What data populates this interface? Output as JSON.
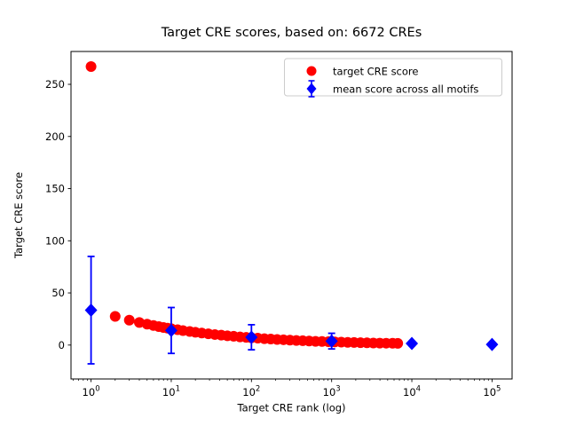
{
  "chart_data": {
    "type": "scatter",
    "title": "Target CRE scores, based on: 6672 CREs",
    "xlabel": "Target CRE rank (log)",
    "ylabel": "Target CRE score",
    "x_scale": "log",
    "xlim_log10": [
      -0.25,
      5.25
    ],
    "ylim": [
      -32.5,
      281.5
    ],
    "x_tick_base": 10,
    "x_tick_exponents": [
      0,
      1,
      2,
      3,
      4,
      5
    ],
    "y_ticks": [
      0,
      50,
      100,
      150,
      200,
      250
    ],
    "grid": false,
    "legend_position": "upper right",
    "n_cres": 6672,
    "series": [
      {
        "name": "target CRE score",
        "marker": "circle",
        "color": "#ff0000",
        "points": [
          [
            1,
            267
          ],
          [
            2,
            27.5
          ],
          [
            3,
            23.9
          ],
          [
            4,
            21.6
          ],
          [
            5,
            20.0
          ],
          [
            6,
            18.8
          ],
          [
            7,
            17.7
          ],
          [
            8,
            16.9
          ],
          [
            9,
            16.2
          ],
          [
            10,
            15.7
          ],
          [
            12,
            14.7
          ],
          [
            14,
            13.9
          ],
          [
            17,
            13.0
          ],
          [
            20,
            12.3
          ],
          [
            24,
            11.5
          ],
          [
            29,
            10.8
          ],
          [
            35,
            10.1
          ],
          [
            42,
            9.5
          ],
          [
            50,
            8.9
          ],
          [
            60,
            8.4
          ],
          [
            72,
            7.8
          ],
          [
            86,
            7.4
          ],
          [
            100,
            7.0
          ],
          [
            120,
            6.6
          ],
          [
            145,
            6.1
          ],
          [
            174,
            5.8
          ],
          [
            209,
            5.4
          ],
          [
            251,
            5.1
          ],
          [
            302,
            4.7
          ],
          [
            363,
            4.4
          ],
          [
            436,
            4.2
          ],
          [
            524,
            3.9
          ],
          [
            630,
            3.6
          ],
          [
            758,
            3.4
          ],
          [
            912,
            3.2
          ],
          [
            1096,
            3.0
          ],
          [
            1318,
            2.8
          ],
          [
            1585,
            2.6
          ],
          [
            1905,
            2.5
          ],
          [
            2291,
            2.3
          ],
          [
            2754,
            2.2
          ],
          [
            3311,
            2.0
          ],
          [
            3981,
            1.9
          ],
          [
            4786,
            1.8
          ],
          [
            5754,
            1.7
          ],
          [
            6672,
            1.6
          ]
        ]
      },
      {
        "name": "mean score across all motifs",
        "marker": "diamond",
        "color": "#0000ff",
        "x": [
          1,
          10,
          100,
          1000,
          10000,
          100000
        ],
        "mean": [
          33.5,
          14.0,
          7.5,
          3.8,
          1.5,
          0.6
        ],
        "err": [
          51.5,
          22.0,
          12.0,
          7.5,
          2.0,
          1.0
        ]
      }
    ]
  },
  "legend": {
    "marker_icons": [
      "circle-icon",
      "diamond-errorbar-icon"
    ]
  }
}
